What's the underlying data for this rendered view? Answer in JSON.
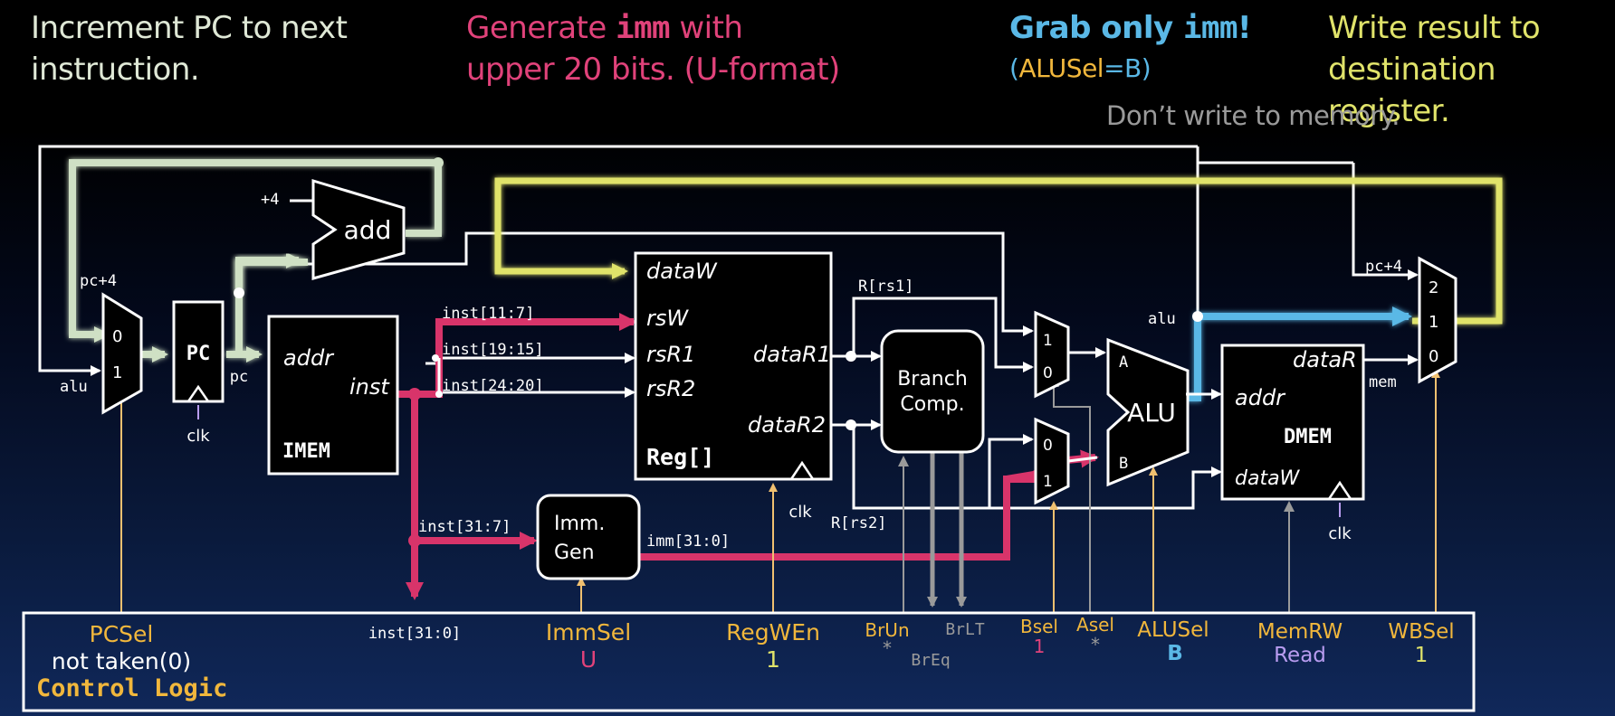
{
  "annotations": {
    "pc": {
      "line1": "Increment PC to next",
      "line2": "instruction."
    },
    "imm": {
      "line1_pre": "Generate ",
      "line1_code": "imm",
      "line1_post": " with",
      "line2": "upper 20 bits. (U-format)"
    },
    "alu": {
      "line1_pre": "Grab only ",
      "line1_code": "imm",
      "line1_post": "!",
      "sub_open": "(",
      "sub_alusel": "ALUSel",
      "sub_eq": "=",
      "sub_b": "B",
      "sub_close": ")"
    },
    "wb": {
      "line1": "Write result to",
      "line2": "destination register."
    },
    "mem_note": "Don’t write to memory."
  },
  "blocks": {
    "add": "add",
    "plus4": "+4",
    "pc_plus4_left": "pc+4",
    "pc": "PC",
    "pc_out": "pc",
    "alu_in": "alu",
    "clk_pc": "clk",
    "mux0": "0",
    "mux1": "1",
    "imem_addr": "addr",
    "imem_inst": "inst",
    "imem_title": "IMEM",
    "inst_11_7": "inst[11:7]",
    "inst_19_15": "inst[19:15]",
    "inst_24_20": "inst[24:20]",
    "inst_31_7": "inst[31:7]",
    "reg_dataW": "dataW",
    "reg_rsW": "rsW",
    "reg_rsR1": "rsR1",
    "reg_rsR2": "rsR2",
    "reg_dataR1": "dataR1",
    "reg_dataR2": "dataR2",
    "reg_title": "Reg[]",
    "clk_reg": "clk",
    "imm_gen_1": "Imm.",
    "imm_gen_2": "Gen",
    "imm_bus": "imm[31:0]",
    "r_rs1": "R[rs1]",
    "r_rs2": "R[rs2]",
    "branch_1": "Branch",
    "branch_2": "Comp.",
    "amux_1": "1",
    "amux_0": "0",
    "bmux_0": "0",
    "bmux_1": "1",
    "alu": "ALU",
    "alu_a": "A",
    "alu_b": "B",
    "alu_out": "alu",
    "dmem_dataR": "dataR",
    "dmem_addr": "addr",
    "dmem_title": "DMEM",
    "dmem_dataW": "dataW",
    "clk_dmem": "clk",
    "wb_pc4": "pc+4",
    "wb_2": "2",
    "wb_1": "1",
    "wb_0": "0",
    "wb_mem": "mem",
    "inst_31_0": "inst[31:0]"
  },
  "control": {
    "title": "Control Logic",
    "pcsel": "PCSel",
    "pcsel_val": "not taken(0)",
    "immsel": "ImmSel",
    "immsel_val": "U",
    "regwen": "RegWEn",
    "regwen_val": "1",
    "brun": "BrUn",
    "brun_val": "*",
    "brlt": "BrLT",
    "breq": "BrEq",
    "bsel": "Bsel",
    "bsel_val": "1",
    "asel": "Asel",
    "asel_val": "*",
    "alusel": "ALUSel",
    "alusel_val": "B",
    "memrw": "MemRW",
    "memrw_val": "Read",
    "wbsel": "WBSel",
    "wbsel_val": "1"
  },
  "colors": {
    "white": "#ffffff",
    "pc_path": "#cfe0c4",
    "imm_path": "#d8346a",
    "alu_path": "#5ab8e6",
    "wb_path": "#e0e36a",
    "ctrl_label": "#f1b73c",
    "ctrl_wire": "#f0c070",
    "gray": "#9a9a9a",
    "read": "#b89cf0",
    "pink_val": "#e0427a",
    "blue_val": "#5ab8e6"
  }
}
